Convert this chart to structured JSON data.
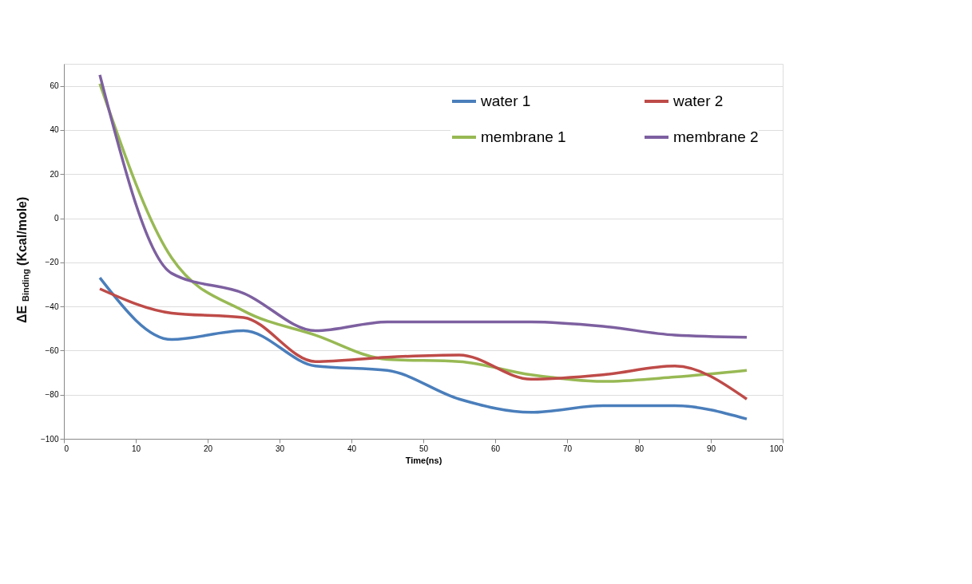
{
  "chart_data": {
    "type": "line",
    "xlabel": "Time(ns)",
    "ylabel": "ΔE$_{Binding}$(Kcal/mole)",
    "x": [
      5,
      15,
      25,
      35,
      45,
      55,
      65,
      75,
      85,
      95
    ],
    "series": [
      {
        "name": "water 1",
        "color": "#4a7ebb",
        "values": [
          -27,
          -55,
          -51,
          -67,
          -69,
          -82,
          -88,
          -85,
          -85,
          -91
        ]
      },
      {
        "name": "membrane 1",
        "color": "#98b954",
        "values": [
          61,
          -18,
          -42,
          -53,
          -64,
          -65,
          -71,
          -74,
          -72,
          -69
        ]
      },
      {
        "name": "water 2",
        "color": "#be4b48",
        "values": [
          -32,
          -43,
          -45,
          -65,
          -63,
          -62,
          -73,
          -71,
          -67,
          -82
        ]
      },
      {
        "name": "membrane 2",
        "color": "#7d60a0",
        "values": [
          65,
          -25,
          -34,
          -51,
          -47,
          -47,
          -47,
          -49,
          -53,
          -54
        ]
      }
    ],
    "xlim": [
      0,
      100
    ],
    "xticks": [
      0,
      10,
      20,
      30,
      40,
      50,
      60,
      70,
      80,
      90,
      100
    ],
    "ylim": [
      -100,
      70
    ],
    "yticks": [
      -100,
      -80,
      -60,
      -40,
      -20,
      0,
      20,
      40,
      60
    ],
    "grid": "y",
    "legend": "top right",
    "marker": "none",
    "line_style": "solid"
  }
}
